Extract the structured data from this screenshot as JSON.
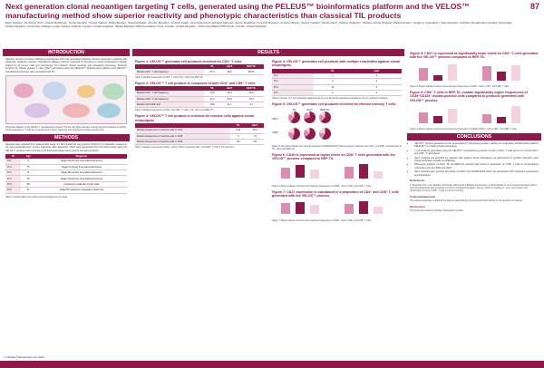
{
  "header": {
    "title": "Next generation clonal neoantigen targeting T cells, generated using the PELEUS™ bioinformatics platform and the VELOS™ manufacturing method show superior reactivity and phenotypic characteristics than classical TIL products",
    "authors": "Eleni Kotsiou¹, Ze Zheng Hou¹, Joseph Robinson¹, Sonal Varsani¹, Theres Oakes¹, Pablo Becker¹, Sheenal Patel¹, Jennine Mootien¹, Andrew Craig¹, Jane Robertson¹, Edward Samuel¹, James Reading², Kyra Del Rosario², Andrew Hayes³, Samra Turajlic³, Farah Islam³, Charles Swanton⁴, Mariam Jamal-Hanjani², Martin Forster², Sergio A. Quezada²,¹, Katy Newton¹. ¹Achilles Therapeutics Limited, Stevenage, United Kingdom; ²University College London Cancer Institute, London, United Kingdom; ³Royal Marsden NHS Foundation Trust, London, United Kingdom; ⁴UCLH and Barts NHS Trusts, London, United Kingdom",
    "page_number": "87"
  },
  "sections": {
    "introduction": "INTRODUCTION",
    "methods": "METHODS",
    "results": "RESULTS",
    "conclusions": "CONCLUSIONS"
  },
  "intro": {
    "text": "Adoptive transfer of tumour infiltrating lymphocytes (TIL) has generated objective clinical responses in patients with advanced metastatic cancers. Therapeutic efficacy could be improved by focusing on clonal neoantigens (cNeAg) shared by all tumour cells and overcoming TIL products' limited reactivity and exhausted phenotype. Products enriched for cNeAg reactive T cells (cNeT) generated using the PELEUS™ bioinformatics platform and VELOS™ manufacturing process were compared with TIL.",
    "diagram_caption": "Schematic diagram of the VELOS™ manufacturing process: Tumour and blood samples undergo genomic analyses to identify clonal neoantigens; T cells are expanded from tumour fragments and enriched for cNeAg reactive cells."
  },
  "methods": {
    "text": "Samples were obtained from patients with stage I-IV Non-Small Cell Lung Cancer (NSCLC) or metastatic melanoma. TIL were expanded from tumour fragments after dissection; cNeT were generated from the same tissue using the VELOS™ process. Flow cytometry and functional assays were used to compare products.",
    "table": {
      "headers": [
        "ID",
        "Age",
        "Diagnosis"
      ],
      "rows": [
        [
          "Pt 1",
          "77",
          "Stage IIIA primary lung adenocarcinoma"
        ],
        [
          "Pt 2",
          "75",
          "Stage II primary lung adenocarcinoma"
        ],
        [
          "Pt 3",
          "71",
          "Stage IIB primary lung adenocarcinoma"
        ],
        [
          "Pt 4",
          "53",
          "Stage IIIA primary lung adenocarcinoma"
        ],
        [
          "Pt 5",
          "58",
          "Cutaneous metastatic lymph node"
        ],
        [
          "Pt 6",
          "37",
          "Stage IB cutaneous metastatic melanoma"
        ]
      ],
      "caption": "Table 1: Clinical data of the patients that participated in the study."
    }
  },
  "results": {
    "fig1": {
      "title": "Figure 1: VELOS™ generates cell products enriched for CD3⁺ T cells",
      "headers": [
        "",
        "TIL",
        "cNeT",
        "REP-TIL"
      ],
      "rows": [
        [
          "Median CD3⁺ T cell frequency",
          "87.3",
          "98.2",
          "95.05"
        ]
      ],
      "caption": "Table 2: Median frequencies of CD3⁺ T cells in TIL, cNeT and REP-TIL."
    },
    "fig2": {
      "title": "Figure 2: VELOS™ T cell product is composed of both CD4⁺ and CD8⁺ T cells",
      "headers": [
        "",
        "TIL",
        "cNeT",
        "REP-TIL"
      ],
      "rows": [
        [
          "Median CD4⁺ T cell frequency",
          "64.8",
          "69.3",
          "78.6"
        ],
        [
          "Median CD8⁺ T cell frequency",
          "31.3",
          "8.44",
          "19.5"
        ],
        [
          "Median CD4:CD8 ratio",
          "2.56",
          "11.1",
          "4.7"
        ]
      ],
      "caption": "Table 3: Median frequencies of CD4⁺ and CD8⁺ T cells in TIL, cNeT and REP-TIL."
    },
    "fig3": {
      "title": "Figure 3: VELOS™ T cell product is enriched for reactive cells against clonal neoantigens",
      "headers": [
        "",
        "TIL",
        "cNeT"
      ],
      "rows": [
        [
          "Median frequencies of reactive cells in CD4⁺",
          "0.32",
          "15.0"
        ],
        [
          "Median frequencies of reactive cells in CD8⁺",
          "0",
          "1.3"
        ],
        [
          "Median frequencies of reactive cells in CD8⁺",
          "0.9",
          "2.8"
        ]
      ],
      "caption": "Table 4: Median frequencies of IFNγ⁺ and/or TNFα⁺ producing CD4⁺ and CD8⁺ T cells in TIL and cNeT."
    },
    "fig4": {
      "title": "Figure 4: VELOS™ generates cell products with multiple reactivities against clonal neoantigens",
      "headers": [
        "",
        "TIL",
        "cNeT"
      ],
      "rows": [
        [
          "Pt 1",
          "1",
          "3"
        ],
        [
          "Pt 2",
          "0",
          "1"
        ],
        [
          "Pt 3",
          "10",
          "6"
        ],
        [
          "Pt 6",
          "2",
          "0"
        ]
      ],
      "caption": "Table 5: Number of T cell reactivities against pools of up to 20 clonal neoantigens identified in the TIL and cNeT products."
    },
    "fig5": {
      "title": "Figure 5: VELOS™ generates cell products enriched for effector memory T cells",
      "col_labels": [
        "TIL",
        "cNeT",
        "REP-TIL"
      ],
      "row_labels": [
        "CD4⁺",
        "CD8⁺"
      ],
      "caption": "Figure 5: Pie charts indicate the mean frequencies of CD45RA/CCR7 defined memory subsets in the CD4⁺ and CD8⁺ compartments in TIL, cNeT and REP-TIL."
    },
    "fig6": {
      "title": "Figure 6: CD28 is expressed at higher levels on CD8⁺ T cells generated with the VELOS™ process compared to REP-TIL",
      "caption": "Figure 6: Boxes indicate minimum and maximum frequencies of CD28⁺ cells in CD4⁺ and CD8⁺ T cells."
    },
    "fig7": {
      "title": "Figure 7: CD27 expression is maintained in a proportion of CD4⁺ and CD8⁺ T cells generated with the VELOS™ process",
      "caption": "Figure 7: Boxes indicate minimum and maximum frequencies of CD27⁺ cells in CD4⁺ and CD8⁺ T cells."
    },
    "fig8": {
      "title": "Figure 8: CD57 is expressed at significantly lower levels on CD4⁺ T cells generated with the VELOS™ process compared to REP-TIL",
      "caption": "Figure 8: Boxes indicate minimum and maximum frequencies of CD57⁺ cells in CD4⁺ and CD8⁺ T cells."
    },
    "fig9": {
      "title": "Figure 9: CD8⁺ T cells in REP-TIL contain significantly higher frequencies of CD39⁺CD103⁺ double-positive cells compared to products generated with VELOS™ process",
      "caption": "Figure 9: Boxes indicate minimum and maximum frequencies of CD39⁺CD103⁺ cells in CD4⁺ and CD8⁺ T cells."
    }
  },
  "conclusions": {
    "bullets": [
      "VELOS™ process generates a truly personalised T cell therapy product, utilising our proprietary bioinformatics platform PELEUS™ to predict clonal neoantigens.",
      "T cell products generated using the VELOS™ manufacturing process consist of CD3⁺ T cells and a mix of both CD4⁺ and CD8⁺ T cell subsets.",
      "cNeT products are enriched for reactive cells against clonal neoantigens as determined by cytokine secretion upon clonal neoantigen peptide re-challenge.",
      "Phenotypic analysis of cNeT, TIL and REP-TIL showed high levels of expression on CD8⁺ T cells of co-stimulatory molecules such as CD28 and CD27.",
      "cNeT products also express low levels of CD57 and CD39/CD103 which are associated with replicative senescence and exhaustion."
    ],
    "references_title": "References",
    "references": "1. Rosenberg SA, et al. Adoptive cell therapy with tumour infiltrating lymphocytes. 2. McGranahan N, et al. Clonal neoantigens elicit T cell immunoreactivity and sensitivity to immune checkpoint blockade. Science. 2016. 3. Reading JL, et al. The function and dysfunction of memory CD8⁺ T cells in tumour immunity.",
    "acknowledgements_title": "Acknowledgements",
    "acknowledgements": "The authors would like to thank all the patients participating in this study and their families for the donation of material.",
    "disclosures_title": "Disclosures",
    "disclosures": "This study was funded by Achilles Therapeutics Limited."
  },
  "copyright": "© Achilles Therapeutics Ltd. 2020",
  "colors": {
    "accent": "#8a1b4a",
    "light": "#f4e8ee"
  }
}
